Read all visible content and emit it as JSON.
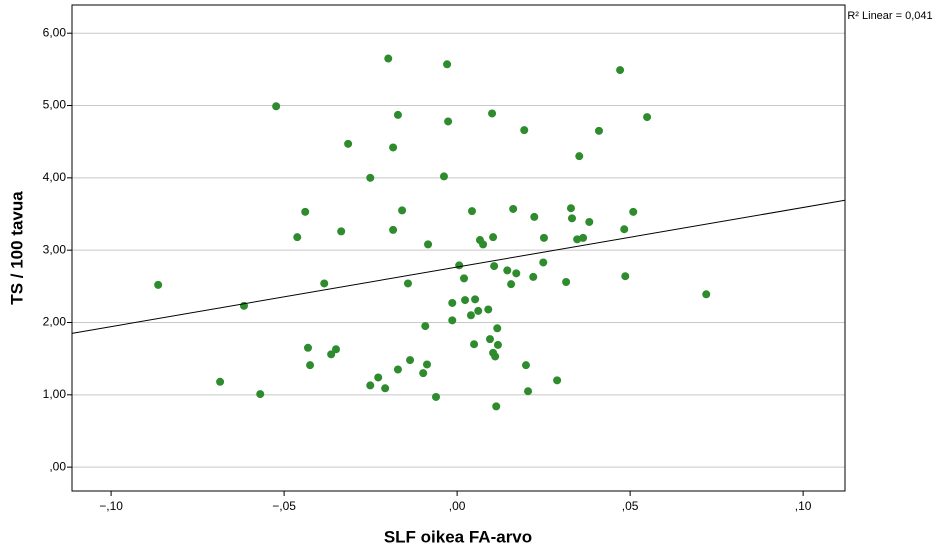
{
  "chart_data": {
    "type": "scatter",
    "xlabel": "SLF oikea FA-arvo",
    "ylabel": "TS / 100 tavua",
    "annotation": "R² Linear = 0,041",
    "color": "#2e8b2e",
    "grid": true,
    "xlim": [
      -0.1113,
      0.1121
    ],
    "ylim": [
      -0.33,
      6.39
    ],
    "xticks": [
      {
        "value": -0.1,
        "label": "−,10"
      },
      {
        "value": -0.05,
        "label": "−,05"
      },
      {
        "value": 0,
        "label": ",00"
      },
      {
        "value": 0.05,
        "label": ",05"
      },
      {
        "value": 0.1,
        "label": ",10"
      }
    ],
    "yticks": [
      {
        "value": 0,
        "label": ",00"
      },
      {
        "value": 1,
        "label": "1,00"
      },
      {
        "value": 2,
        "label": "2,00"
      },
      {
        "value": 3,
        "label": "3,00"
      },
      {
        "value": 4,
        "label": "4,00"
      },
      {
        "value": 5,
        "label": "5,00"
      },
      {
        "value": 6,
        "label": "6,00"
      }
    ],
    "x": [
      -0.0864,
      -0.0685,
      -0.0616,
      -0.0569,
      -0.0523,
      -0.0462,
      -0.0439,
      -0.0431,
      -0.0425,
      -0.0384,
      -0.0364,
      -0.035,
      -0.0335,
      -0.0315,
      -0.0251,
      -0.0251,
      -0.0228,
      -0.0208,
      -0.0199,
      -0.0185,
      -0.0185,
      -0.0171,
      -0.0171,
      -0.0159,
      -0.0142,
      -0.0136,
      -0.0098,
      -0.0092,
      -0.0087,
      -0.0084,
      -0.0061,
      -0.0038,
      -0.0029,
      -0.0026,
      -0.0014,
      -0.0014,
      0.0006,
      0.002,
      0.0023,
      0.004,
      0.0043,
      0.0049,
      0.0052,
      0.0061,
      0.0066,
      0.0075,
      0.009,
      0.0095,
      0.0101,
      0.0104,
      0.0107,
      0.0104,
      0.011,
      0.0116,
      0.0118,
      0.0113,
      0.0145,
      0.0156,
      0.0162,
      0.0171,
      0.0194,
      0.0199,
      0.0205,
      0.022,
      0.0223,
      0.0249,
      0.0251,
      0.0289,
      0.0315,
      0.0329,
      0.0332,
      0.0347,
      0.0353,
      0.0364,
      0.0382,
      0.041,
      0.0471,
      0.0483,
      0.0486,
      0.0509,
      0.0549,
      0.072
    ],
    "values": [
      2.52,
      1.18,
      2.23,
      1.01,
      4.99,
      3.18,
      3.53,
      1.65,
      1.41,
      2.54,
      1.56,
      1.63,
      3.26,
      4.47,
      4.0,
      1.13,
      1.24,
      1.09,
      5.65,
      3.28,
      4.42,
      4.87,
      1.35,
      3.55,
      2.54,
      1.48,
      1.3,
      1.95,
      1.42,
      3.08,
      0.97,
      4.02,
      5.57,
      4.78,
      2.27,
      2.03,
      2.79,
      2.61,
      2.31,
      2.1,
      3.54,
      1.7,
      2.32,
      2.16,
      3.14,
      3.08,
      2.18,
      1.77,
      4.89,
      3.18,
      2.78,
      1.58,
      1.53,
      1.92,
      1.69,
      0.84,
      2.72,
      2.53,
      3.57,
      2.68,
      4.66,
      1.41,
      1.05,
      2.63,
      3.46,
      2.83,
      3.17,
      1.2,
      2.56,
      3.58,
      3.44,
      3.15,
      4.3,
      3.17,
      3.39,
      4.65,
      5.49,
      3.29,
      2.64,
      3.53,
      4.84,
      2.39
    ],
    "fit_line": {
      "x": [
        -0.1113,
        0.1121
      ],
      "y": [
        1.85,
        3.69
      ],
      "color": "#000000"
    }
  }
}
